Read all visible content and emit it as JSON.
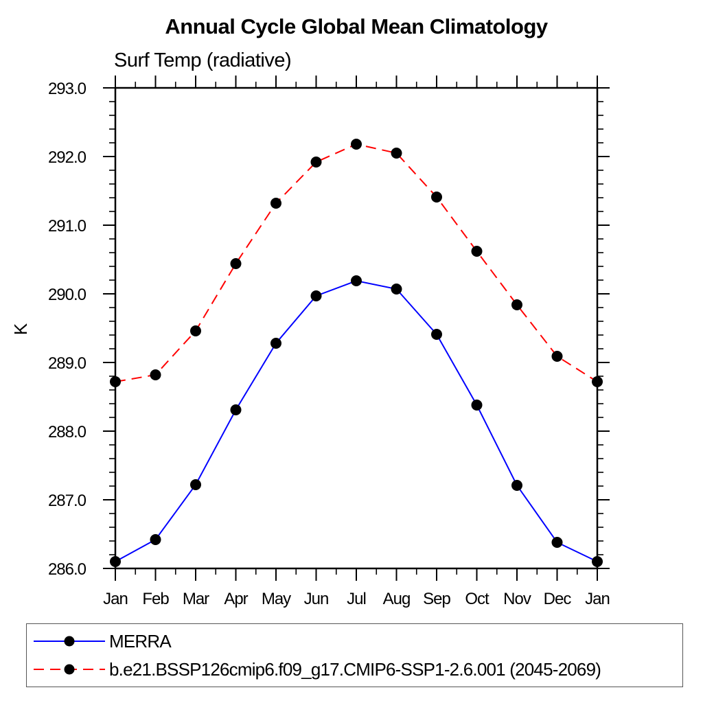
{
  "chart_data": {
    "type": "line",
    "title": "Annual Cycle Global Mean Climatology",
    "subtitle": "Surf Temp (radiative)",
    "ylabel": "K",
    "xlabel": "",
    "categories": [
      "Jan",
      "Feb",
      "Mar",
      "Apr",
      "May",
      "Jun",
      "Jul",
      "Aug",
      "Sep",
      "Oct",
      "Nov",
      "Dec",
      "Jan"
    ],
    "ylim": [
      286.0,
      293.0
    ],
    "ytick_interval": 1.0,
    "ytick_minor_interval": 0.2,
    "xtick_minor_per_interval": 1,
    "grid": false,
    "legend_position": "bottom",
    "axis_color": "#000000",
    "marker_color": "#000000",
    "series": [
      {
        "name": "MERRA",
        "color": "#0000ff",
        "line_style": "solid",
        "marker": "filled-circle",
        "values": [
          286.1,
          286.42,
          287.22,
          288.31,
          289.28,
          289.97,
          290.19,
          290.07,
          289.41,
          288.38,
          287.21,
          286.38,
          286.1
        ]
      },
      {
        "name": "b.e21.BSSP126cmip6.f09_g17.CMIP6-SSP1-2.6.001 (2045-2069)",
        "color": "#ff0000",
        "line_style": "dashed",
        "marker": "filled-circle",
        "values": [
          288.72,
          288.82,
          289.46,
          290.44,
          291.32,
          291.92,
          292.18,
          292.05,
          291.41,
          290.62,
          289.84,
          289.09,
          288.72
        ]
      }
    ]
  }
}
